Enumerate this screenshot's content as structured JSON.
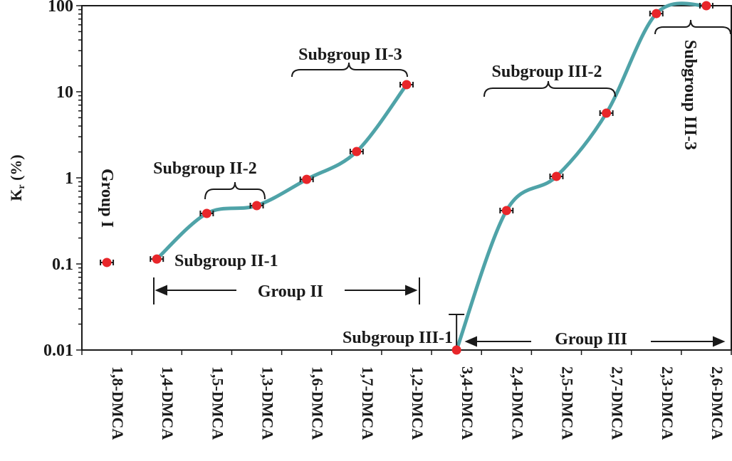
{
  "chart_data": {
    "type": "line",
    "title": "",
    "xlabel": "",
    "ylabel": "Kr (%)",
    "ylabel_main": "K",
    "ylabel_sub": "r",
    "ylabel_unit": " (%)",
    "yscale": "log",
    "ylim": [
      0.01,
      100
    ],
    "yticks": [
      "0.01",
      "0.1",
      "1",
      "10",
      "100"
    ],
    "grid": false,
    "categories": [
      "1,8-DMCA",
      "1,4-DMCA",
      "1,5-DMCA",
      "1,3-DMCA",
      "1,6-DMCA",
      "1,7-DMCA",
      "1,2-DMCA",
      "3,4-DMCA",
      "2,4-DMCA",
      "2,5-DMCA",
      "2,7-DMCA",
      "2,3-DMCA",
      "2,6-DMCA"
    ],
    "values": [
      0.104,
      0.114,
      0.386,
      0.476,
      0.96,
      2.02,
      12.1,
      0.01,
      0.417,
      1.04,
      5.65,
      81,
      100
    ],
    "line_segments": [
      [
        1,
        6
      ],
      [
        7,
        12
      ]
    ],
    "colors": {
      "marker": "#e8262a",
      "line": "#4fa3a8",
      "axis": "#1a1a1a"
    },
    "annotations": {
      "group1": "Group I",
      "group2": "Group II",
      "group3": "Group III",
      "sub_ii_1": "Subgroup II-1",
      "sub_ii_2": "Subgroup II-2",
      "sub_ii_3": "Subgroup II-3",
      "sub_iii_1": "Subgroup III-1",
      "sub_iii_2": "Subgroup III-2",
      "sub_iii_3": "Subgroup III-3"
    }
  }
}
